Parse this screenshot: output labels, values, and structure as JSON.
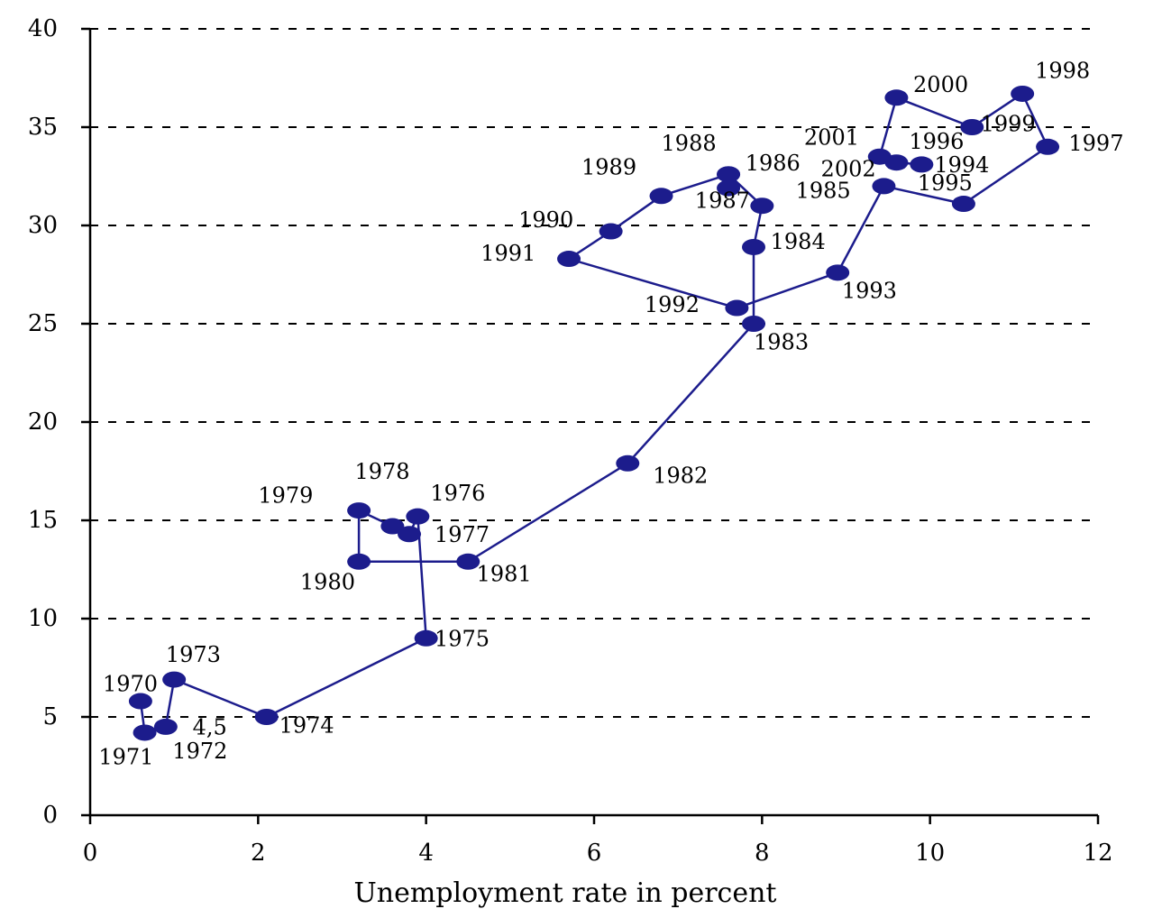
{
  "chart_data": {
    "type": "line",
    "title": "",
    "xlabel": "Unemployment rate in percent",
    "ylabel": "",
    "xlim": [
      0,
      12
    ],
    "ylim": [
      0,
      40
    ],
    "xticks": [
      0,
      2,
      4,
      6,
      8,
      10,
      12
    ],
    "yticks": [
      0,
      5,
      10,
      15,
      20,
      25,
      30,
      35,
      40
    ],
    "grid": "horizontal dashed",
    "legend": "none",
    "colors": {
      "series": "#1c1c8c",
      "axis": "#000000"
    },
    "series": [
      {
        "points": [
          {
            "label": "1970",
            "x": 0.6,
            "y": 5.8
          },
          {
            "label": "1971",
            "x": 0.65,
            "y": 4.2
          },
          {
            "label": "1972",
            "x": 0.9,
            "y": 4.5
          },
          {
            "label": "1973",
            "x": 1.0,
            "y": 6.9
          },
          {
            "label": "1974",
            "x": 2.1,
            "y": 5.0
          },
          {
            "label": "1975",
            "x": 4.0,
            "y": 9.0
          },
          {
            "label": "1976",
            "x": 3.9,
            "y": 15.2
          },
          {
            "label": "1977",
            "x": 3.8,
            "y": 14.3
          },
          {
            "label": "1978",
            "x": 3.6,
            "y": 14.7
          },
          {
            "label": "1979",
            "x": 3.2,
            "y": 15.5
          },
          {
            "label": "1980",
            "x": 3.2,
            "y": 12.9
          },
          {
            "label": "1981",
            "x": 4.5,
            "y": 12.9
          },
          {
            "label": "1982",
            "x": 6.4,
            "y": 17.9
          },
          {
            "label": "1983",
            "x": 7.9,
            "y": 25.0
          },
          {
            "label": "1984",
            "x": 7.9,
            "y": 28.9
          },
          {
            "label": "1985",
            "x": 8.0,
            "y": 31.0
          },
          {
            "label": "1986",
            "x": 7.6,
            "y": 32.6
          },
          {
            "label": "1987",
            "x": 7.6,
            "y": 31.9
          },
          {
            "label": "1988",
            "x": 7.6,
            "y": 32.6
          },
          {
            "label": "1989",
            "x": 6.8,
            "y": 31.5
          },
          {
            "label": "1990",
            "x": 6.2,
            "y": 29.7
          },
          {
            "label": "1991",
            "x": 5.7,
            "y": 28.3
          },
          {
            "label": "1992",
            "x": 7.7,
            "y": 25.8
          },
          {
            "label": "1993",
            "x": 8.9,
            "y": 27.6
          },
          {
            "label": "1994",
            "x": 9.45,
            "y": 32.0
          },
          {
            "label": "1995",
            "x": 10.4,
            "y": 31.1
          },
          {
            "label": "1996",
            "x": 11.4,
            "y": 34.0
          },
          {
            "label": "1997",
            "x": 11.1,
            "y": 36.7
          },
          {
            "label": "1998",
            "x": 10.5,
            "y": 35.0
          },
          {
            "label": "1999",
            "x": 9.6,
            "y": 36.5
          },
          {
            "label": "2000",
            "x": 9.4,
            "y": 33.5
          },
          {
            "label": "2001",
            "x": 9.6,
            "y": 33.2
          },
          {
            "label": "2002",
            "x": 9.9,
            "y": 33.1
          }
        ]
      }
    ],
    "annotations": [
      {
        "text": "1970",
        "x": 0.15,
        "y": 6.3
      },
      {
        "text": "1971",
        "x": 0.1,
        "y": 2.6
      },
      {
        "text": "1972",
        "x": 0.98,
        "y": 2.9
      },
      {
        "text": "4,5",
        "x": 1.22,
        "y": 4.1
      },
      {
        "text": "1973",
        "x": 0.9,
        "y": 7.8
      },
      {
        "text": "1974",
        "x": 2.25,
        "y": 4.2
      },
      {
        "text": "1975",
        "x": 4.1,
        "y": 8.6
      },
      {
        "text": "1976",
        "x": 4.05,
        "y": 16.0
      },
      {
        "text": "1977",
        "x": 4.1,
        "y": 13.9
      },
      {
        "text": "1978",
        "x": 3.15,
        "y": 17.1
      },
      {
        "text": "1979",
        "x": 2.0,
        "y": 15.9
      },
      {
        "text": "1980",
        "x": 2.5,
        "y": 11.5
      },
      {
        "text": "1981",
        "x": 4.6,
        "y": 11.9
      },
      {
        "text": "1982",
        "x": 6.7,
        "y": 16.9
      },
      {
        "text": "1983",
        "x": 7.9,
        "y": 23.7
      },
      {
        "text": "1984",
        "x": 8.1,
        "y": 28.8
      },
      {
        "text": "1985",
        "x": 8.4,
        "y": 31.4
      },
      {
        "text": "1986",
        "x": 7.8,
        "y": 32.8
      },
      {
        "text": "1987",
        "x": 7.2,
        "y": 30.9
      },
      {
        "text": "1988",
        "x": 6.8,
        "y": 33.8
      },
      {
        "text": "1989",
        "x": 5.85,
        "y": 32.6
      },
      {
        "text": "1990",
        "x": 5.1,
        "y": 29.9
      },
      {
        "text": "1991",
        "x": 4.65,
        "y": 28.2
      },
      {
        "text": "1992",
        "x": 6.6,
        "y": 25.6
      },
      {
        "text": "1993",
        "x": 8.95,
        "y": 26.3
      },
      {
        "text": "1994",
        "x": 10.05,
        "y": 32.7
      },
      {
        "text": "1995",
        "x": 9.85,
        "y": 31.8
      },
      {
        "text": "1996",
        "x": 9.75,
        "y": 33.9
      },
      {
        "text": "1997",
        "x": 11.65,
        "y": 33.8
      },
      {
        "text": "1998",
        "x": 11.25,
        "y": 37.5
      },
      {
        "text": "1999",
        "x": 10.6,
        "y": 34.8
      },
      {
        "text": "2000",
        "x": 9.8,
        "y": 36.8
      },
      {
        "text": "2001",
        "x": 8.5,
        "y": 34.1
      },
      {
        "text": "2002",
        "x": 8.7,
        "y": 32.5
      }
    ]
  }
}
